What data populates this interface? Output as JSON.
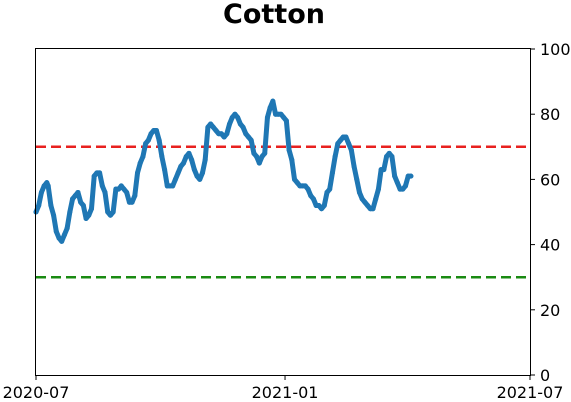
{
  "chart_data": {
    "type": "line",
    "title": "Cotton",
    "xlabel": "",
    "ylabel": "",
    "x_range": [
      "2020-07-01",
      "2021-07-01"
    ],
    "ylim": [
      0,
      100
    ],
    "y_axis_side": "right",
    "grid": false,
    "x_ticks": [
      {
        "value": "2020-07-01",
        "label": "2020-07"
      },
      {
        "value": "2021-01-01",
        "label": "2021-01"
      },
      {
        "value": "2021-07-01",
        "label": "2021-07"
      }
    ],
    "y_ticks": [
      0,
      20,
      40,
      60,
      80,
      100
    ],
    "reference_lines": [
      {
        "y": 70,
        "color": "#e8211f",
        "style": "dashed"
      },
      {
        "y": 30,
        "color": "#1a8a12",
        "style": "dashed"
      }
    ],
    "series": [
      {
        "color": "#1f77b4",
        "points": [
          [
            "2020-07-01",
            50
          ],
          [
            "2020-07-03",
            52
          ],
          [
            "2020-07-05",
            56
          ],
          [
            "2020-07-07",
            58
          ],
          [
            "2020-07-09",
            59
          ],
          [
            "2020-07-10",
            58
          ],
          [
            "2020-07-12",
            52
          ],
          [
            "2020-07-14",
            49
          ],
          [
            "2020-07-16",
            44
          ],
          [
            "2020-07-18",
            42
          ],
          [
            "2020-07-20",
            41
          ],
          [
            "2020-07-22",
            43
          ],
          [
            "2020-07-24",
            45
          ],
          [
            "2020-07-26",
            50
          ],
          [
            "2020-07-28",
            54
          ],
          [
            "2020-07-30",
            55
          ],
          [
            "2020-08-01",
            56
          ],
          [
            "2020-08-03",
            53
          ],
          [
            "2020-08-05",
            52
          ],
          [
            "2020-08-07",
            48
          ],
          [
            "2020-08-09",
            49
          ],
          [
            "2020-08-11",
            51
          ],
          [
            "2020-08-13",
            61
          ],
          [
            "2020-08-15",
            62
          ],
          [
            "2020-08-17",
            62
          ],
          [
            "2020-08-19",
            58
          ],
          [
            "2020-08-21",
            56
          ],
          [
            "2020-08-23",
            50
          ],
          [
            "2020-08-25",
            49
          ],
          [
            "2020-08-27",
            50
          ],
          [
            "2020-08-29",
            57
          ],
          [
            "2020-08-31",
            57
          ],
          [
            "2020-09-02",
            58
          ],
          [
            "2020-09-04",
            57
          ],
          [
            "2020-09-06",
            56
          ],
          [
            "2020-09-08",
            53
          ],
          [
            "2020-09-10",
            53
          ],
          [
            "2020-09-12",
            55
          ],
          [
            "2020-09-14",
            62
          ],
          [
            "2020-09-16",
            65
          ],
          [
            "2020-09-18",
            67
          ],
          [
            "2020-09-20",
            71
          ],
          [
            "2020-09-22",
            72
          ],
          [
            "2020-09-24",
            74
          ],
          [
            "2020-09-26",
            75
          ],
          [
            "2020-09-28",
            75
          ],
          [
            "2020-09-30",
            72
          ],
          [
            "2020-10-02",
            67
          ],
          [
            "2020-10-04",
            63
          ],
          [
            "2020-10-06",
            58
          ],
          [
            "2020-10-08",
            58
          ],
          [
            "2020-10-10",
            58
          ],
          [
            "2020-10-12",
            60
          ],
          [
            "2020-10-14",
            62
          ],
          [
            "2020-10-16",
            64
          ],
          [
            "2020-10-18",
            65
          ],
          [
            "2020-10-20",
            67
          ],
          [
            "2020-10-22",
            68
          ],
          [
            "2020-10-24",
            66
          ],
          [
            "2020-10-26",
            63
          ],
          [
            "2020-10-28",
            61
          ],
          [
            "2020-10-30",
            60
          ],
          [
            "2020-11-01",
            62
          ],
          [
            "2020-11-03",
            66
          ],
          [
            "2020-11-05",
            76
          ],
          [
            "2020-11-07",
            77
          ],
          [
            "2020-11-09",
            76
          ],
          [
            "2020-11-11",
            75
          ],
          [
            "2020-11-13",
            74
          ],
          [
            "2020-11-15",
            74
          ],
          [
            "2020-11-17",
            73
          ],
          [
            "2020-11-19",
            74
          ],
          [
            "2020-11-21",
            77
          ],
          [
            "2020-11-23",
            79
          ],
          [
            "2020-11-25",
            80
          ],
          [
            "2020-11-27",
            79
          ],
          [
            "2020-11-29",
            77
          ],
          [
            "2020-12-01",
            76
          ],
          [
            "2020-12-03",
            74
          ],
          [
            "2020-12-05",
            73
          ],
          [
            "2020-12-07",
            72
          ],
          [
            "2020-12-09",
            68
          ],
          [
            "2020-12-11",
            67
          ],
          [
            "2020-12-13",
            65
          ],
          [
            "2020-12-15",
            67
          ],
          [
            "2020-12-17",
            68
          ],
          [
            "2020-12-19",
            79
          ],
          [
            "2020-12-21",
            82
          ],
          [
            "2020-12-23",
            84
          ],
          [
            "2020-12-25",
            80
          ],
          [
            "2020-12-27",
            80
          ],
          [
            "2020-12-29",
            80
          ],
          [
            "2020-12-31",
            79
          ],
          [
            "2021-01-02",
            78
          ],
          [
            "2021-01-04",
            69
          ],
          [
            "2021-01-06",
            66
          ],
          [
            "2021-01-08",
            60
          ],
          [
            "2021-01-10",
            59
          ],
          [
            "2021-01-12",
            58
          ],
          [
            "2021-01-14",
            58
          ],
          [
            "2021-01-16",
            58
          ],
          [
            "2021-01-18",
            57
          ],
          [
            "2021-01-20",
            55
          ],
          [
            "2021-01-22",
            54
          ],
          [
            "2021-01-24",
            52
          ],
          [
            "2021-01-26",
            52
          ],
          [
            "2021-01-28",
            51
          ],
          [
            "2021-01-30",
            52
          ],
          [
            "2021-02-01",
            56
          ],
          [
            "2021-02-03",
            57
          ],
          [
            "2021-02-05",
            62
          ],
          [
            "2021-02-07",
            67
          ],
          [
            "2021-02-09",
            71
          ],
          [
            "2021-02-11",
            72
          ],
          [
            "2021-02-13",
            73
          ],
          [
            "2021-02-15",
            73
          ],
          [
            "2021-02-17",
            71
          ],
          [
            "2021-02-19",
            69
          ],
          [
            "2021-02-21",
            64
          ],
          [
            "2021-02-23",
            60
          ],
          [
            "2021-02-25",
            56
          ],
          [
            "2021-02-27",
            54
          ],
          [
            "2021-03-01",
            53
          ],
          [
            "2021-03-03",
            52
          ],
          [
            "2021-03-05",
            51
          ],
          [
            "2021-03-07",
            51
          ],
          [
            "2021-03-09",
            54
          ],
          [
            "2021-03-11",
            57
          ],
          [
            "2021-03-13",
            63
          ],
          [
            "2021-03-15",
            63
          ],
          [
            "2021-03-17",
            67
          ],
          [
            "2021-03-19",
            68
          ],
          [
            "2021-03-21",
            67
          ],
          [
            "2021-03-23",
            61
          ],
          [
            "2021-03-25",
            59
          ],
          [
            "2021-03-27",
            57
          ],
          [
            "2021-03-29",
            57
          ],
          [
            "2021-03-31",
            58
          ],
          [
            "2021-04-02",
            61
          ],
          [
            "2021-04-04",
            61
          ]
        ]
      }
    ]
  }
}
